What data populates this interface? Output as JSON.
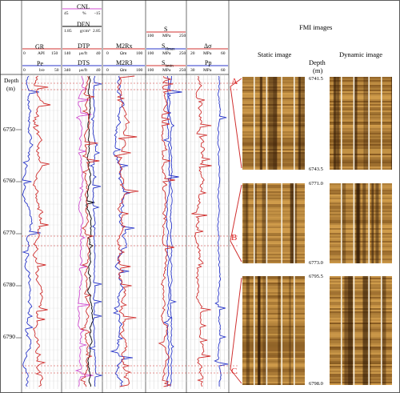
{
  "tracks": {
    "depth": {
      "label": "Depth",
      "unit": "(m)",
      "ticks": [
        "6750",
        "6760",
        "6770",
        "6780",
        "6790"
      ]
    },
    "t1": {
      "c1": {
        "name": "GR",
        "unit": "API",
        "min": "0",
        "max": "150",
        "color": "#d0302f"
      },
      "c2": {
        "name": "Pe",
        "unit": "b/e",
        "min": "0",
        "max": "50",
        "color": "#2936c9"
      }
    },
    "t2": {
      "c0": {
        "name": "CNL",
        "unit": "%",
        "min": "45",
        "max": "-15",
        "color": "#d24fd1"
      },
      "c1": {
        "name": "DEN",
        "unit": "g/cm³",
        "min": "1.85",
        "max": "2.85",
        "color": "#000000"
      },
      "c2": {
        "name": "DTP",
        "unit": "μs/ft",
        "min": "140",
        "max": "40",
        "color": "#d0302f"
      },
      "c3": {
        "name": "DTS",
        "unit": "μs/ft",
        "min": "340",
        "max": "40",
        "color": "#2936c9"
      }
    },
    "t3": {
      "c1": {
        "name": "M2Rx",
        "unit": "Ωm",
        "min": "0",
        "max": "100",
        "color": "#d0302f"
      },
      "c2": {
        "name": "M2R3",
        "unit": "Ωm",
        "min": "0",
        "max": "100",
        "color": "#2936c9"
      }
    },
    "t4": {
      "c1": {
        "name": "S",
        "unit": "MPa",
        "min": "100",
        "max": "250",
        "color": "#d0302f"
      },
      "c2": {
        "name": "S",
        "sub": "Hmax",
        "unit": "MPa",
        "min": "100",
        "max": "250",
        "color": "#2936c9"
      },
      "c3": {
        "name": "S",
        "sub": "hmin",
        "unit": "MPa",
        "min": "100",
        "max": "250",
        "color": "#d0302f"
      }
    },
    "t5": {
      "c1": {
        "name": "Δσ",
        "unit": "MPa",
        "min": "20",
        "max": "60",
        "color": "#d0302f"
      },
      "c2": {
        "name": "Pp",
        "unit": "MPa",
        "min": "30",
        "max": "60",
        "color": "#2936c9"
      }
    }
  },
  "fmi": {
    "title": "FMI images",
    "static_label": "Static image",
    "dynamic_label": "Dynamic image",
    "depth_label": "Depth",
    "depth_unit": "(m)",
    "intervals": [
      {
        "label": "A",
        "top": "6741.5",
        "bottom": "6743.5"
      },
      {
        "label": "B",
        "top": "6771.0",
        "bottom": "6773.0"
      },
      {
        "label": "C",
        "top": "6795.5",
        "bottom": "6798.0"
      }
    ]
  },
  "colors": {
    "red": "#d0302f",
    "blue": "#2936c9",
    "magenta": "#d24fd1",
    "grid": "#c8c8c8",
    "image_dark": "#5a3208",
    "image_light": "#e8b25a"
  }
}
